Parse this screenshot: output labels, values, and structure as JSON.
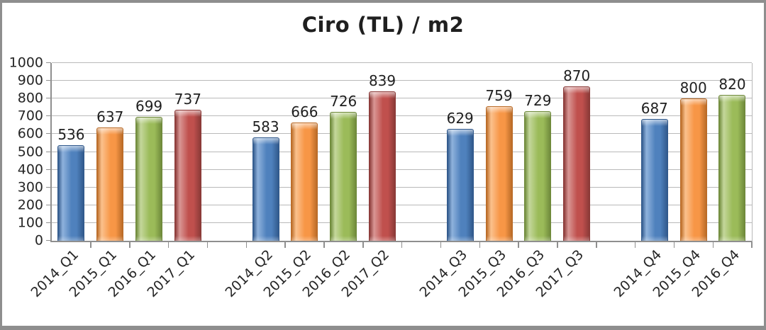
{
  "frame": {
    "background": "#ffffff",
    "border_color": "#8e8e8e"
  },
  "chart_data": {
    "type": "bar",
    "title": "Ciro (TL) / m2",
    "xlabel": "",
    "ylabel": "",
    "ylim": [
      0,
      1000
    ],
    "ytick_step": 100,
    "ytick_labels_top_to_bottom": [
      "1000",
      "900",
      "800",
      "700",
      "600",
      "500",
      "400",
      "300",
      "200",
      "100",
      "0"
    ],
    "grid": true,
    "legend": "none",
    "value_labels_shown": true,
    "x_label_rotation_deg": 45,
    "series_styles": {
      "2014": {
        "base": "#4F81BD",
        "light": "#8FB2DC",
        "dark": "#31598C"
      },
      "2015": {
        "base": "#F79646",
        "light": "#FBC18D",
        "dark": "#BA6B27"
      },
      "2016": {
        "base": "#9BBB59",
        "light": "#C4D79B",
        "dark": "#6F8A3B"
      },
      "2017": {
        "base": "#C0504D",
        "light": "#D99694",
        "dark": "#8B3A38"
      }
    },
    "groups": [
      {
        "name": "Q1",
        "bars": [
          {
            "label": "2014_Q1",
            "series": "2014",
            "value": 536
          },
          {
            "label": "2015_Q1",
            "series": "2015",
            "value": 637
          },
          {
            "label": "2016_Q1",
            "series": "2016",
            "value": 699
          },
          {
            "label": "2017_Q1",
            "series": "2017",
            "value": 737
          }
        ]
      },
      {
        "name": "Q2",
        "bars": [
          {
            "label": "2014_Q2",
            "series": "2014",
            "value": 583
          },
          {
            "label": "2015_Q2",
            "series": "2015",
            "value": 666
          },
          {
            "label": "2016_Q2",
            "series": "2016",
            "value": 726
          },
          {
            "label": "2017_Q2",
            "series": "2017",
            "value": 839
          }
        ]
      },
      {
        "name": "Q3",
        "bars": [
          {
            "label": "2014_Q3",
            "series": "2014",
            "value": 629
          },
          {
            "label": "2015_Q3",
            "series": "2015",
            "value": 759
          },
          {
            "label": "2016_Q3",
            "series": "2016",
            "value": 729
          },
          {
            "label": "2017_Q3",
            "series": "2017",
            "value": 870
          }
        ]
      },
      {
        "name": "Q4",
        "bars": [
          {
            "label": "2014_Q4",
            "series": "2014",
            "value": 687
          },
          {
            "label": "2015_Q4",
            "series": "2015",
            "value": 800
          },
          {
            "label": "2016_Q4",
            "series": "2016",
            "value": 820
          }
        ]
      }
    ]
  }
}
